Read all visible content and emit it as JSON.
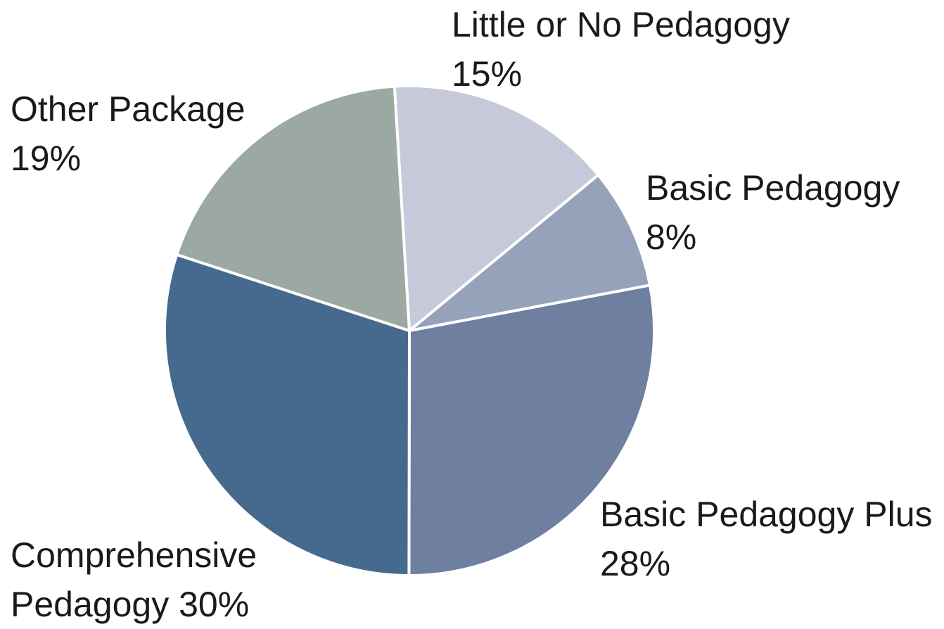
{
  "chart_data": {
    "type": "pie",
    "slices": [
      {
        "label": "Little or No Pedagogy",
        "value": 15,
        "value_label": "15%",
        "color": "#c5c9d9"
      },
      {
        "label": "Basic Pedagogy",
        "value": 8,
        "value_label": "8%",
        "color": "#96a1ba"
      },
      {
        "label": "Basic Pedagogy Plus",
        "value": 28,
        "value_label": "28%",
        "color": "#6e7fa0"
      },
      {
        "label": "Comprehensive Pedagogy",
        "value": 30,
        "value_label": "30%",
        "color": "#466a8e"
      },
      {
        "label": "Other Package",
        "value": 19,
        "value_label": "19%",
        "color": "#9ca8a2"
      }
    ],
    "display_labels": {
      "little": {
        "line1": "Little or No Pedagogy",
        "line2": "15%"
      },
      "basic": {
        "line1": "Basic Pedagogy",
        "line2": "8%"
      },
      "plus": {
        "line1": "Basic Pedagogy Plus",
        "line2": "28%"
      },
      "comprehensive": {
        "line1": "Comprehensive",
        "line2": "Pedagogy 30%"
      },
      "other": {
        "line1": "Other Package",
        "line2": "19%"
      }
    }
  }
}
